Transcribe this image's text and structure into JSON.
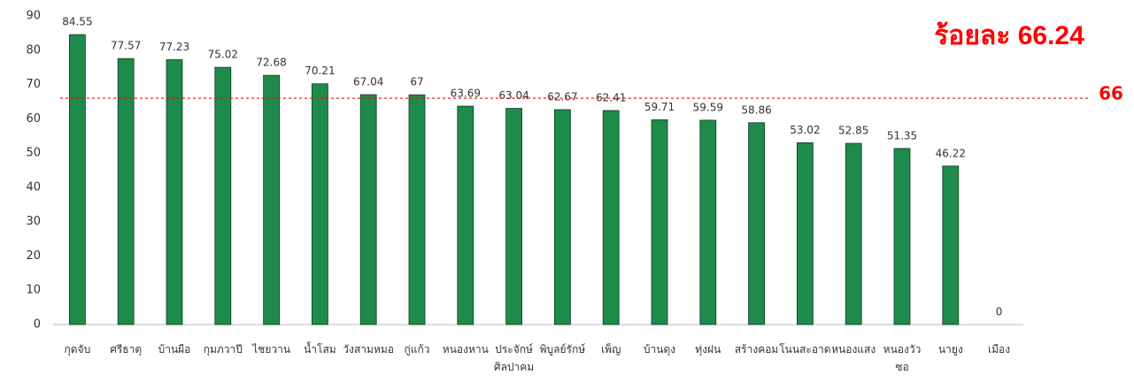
{
  "chart_data": {
    "type": "bar",
    "annotation": "ร้อยละ 66.24",
    "categories": [
      "กุดจับ",
      "ศรีธาตุ",
      "บ้านผือ",
      "กุมภวาปี",
      "ไชยวาน",
      "น้ำโสม",
      "วังสามหมอ",
      "กู่แก้ว",
      "หนองหาน",
      "ประจักษ์\nศิลปาคม",
      "พิบูลย์รักษ์",
      "เพ็ญ",
      "บ้านดุง",
      "ทุ่งฝน",
      "สร้างคอม",
      "โนนสะอาด",
      "หนองแสง",
      "หนองวัว\nซอ",
      "นายูง",
      "เมือง"
    ],
    "values": [
      84.55,
      77.57,
      77.23,
      75.02,
      72.68,
      70.21,
      67.04,
      67,
      63.69,
      63.04,
      62.67,
      62.41,
      59.71,
      59.59,
      58.86,
      53.02,
      52.85,
      51.35,
      46.22,
      0
    ],
    "color": "#1e8a4c",
    "ylim": [
      0,
      90
    ],
    "yticks": [
      0,
      10,
      20,
      30,
      40,
      50,
      60,
      70,
      80,
      90
    ],
    "grid": false,
    "reference_line": {
      "value": 66,
      "color": "#ff0000"
    }
  }
}
